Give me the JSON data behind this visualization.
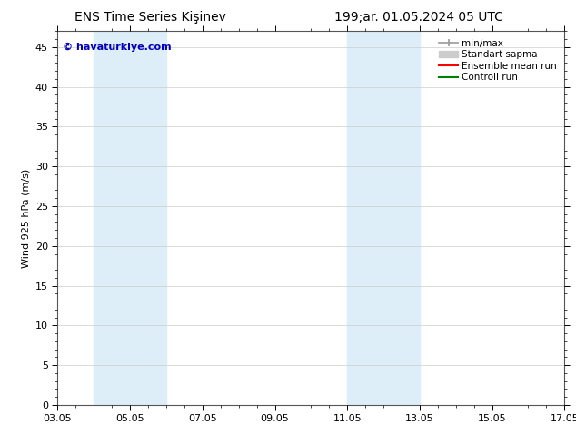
{
  "title_left": "ENS Time Series Kişinev",
  "title_right": "199;ar. 01.05.2024 05 UTC",
  "ylabel": "Wind 925 hPa (m/s)",
  "watermark": "© havaturkiye.com",
  "ylim": [
    0,
    47
  ],
  "yticks": [
    0,
    5,
    10,
    15,
    20,
    25,
    30,
    35,
    40,
    45
  ],
  "xtick_positions": [
    0,
    2,
    4,
    6,
    8,
    10,
    12,
    14
  ],
  "xtick_labels": [
    "03.05",
    "05.05",
    "07.05",
    "09.05",
    "11.05",
    "13.05",
    "15.05",
    "17.05"
  ],
  "shaded_bands": [
    {
      "x_start": 1.0,
      "x_end": 3.0,
      "color": "#ddeef8"
    },
    {
      "x_start": 8.0,
      "x_end": 10.0,
      "color": "#ddeef8"
    }
  ],
  "legend_items": [
    {
      "label": "min/max",
      "color": "#999999",
      "lw": 1.2,
      "style": "minmax"
    },
    {
      "label": "Standart sapma",
      "color": "#cccccc",
      "lw": 8,
      "style": "band"
    },
    {
      "label": "Ensemble mean run",
      "color": "#ff0000",
      "lw": 1.5,
      "style": "line"
    },
    {
      "label": "Controll run",
      "color": "#008000",
      "lw": 1.5,
      "style": "line"
    }
  ],
  "background_color": "#ffffff",
  "grid_color": "#cccccc",
  "title_fontsize": 10,
  "tick_fontsize": 8,
  "ylabel_fontsize": 8,
  "watermark_color": "#0000bb",
  "watermark_fontsize": 8,
  "legend_fontsize": 7.5
}
